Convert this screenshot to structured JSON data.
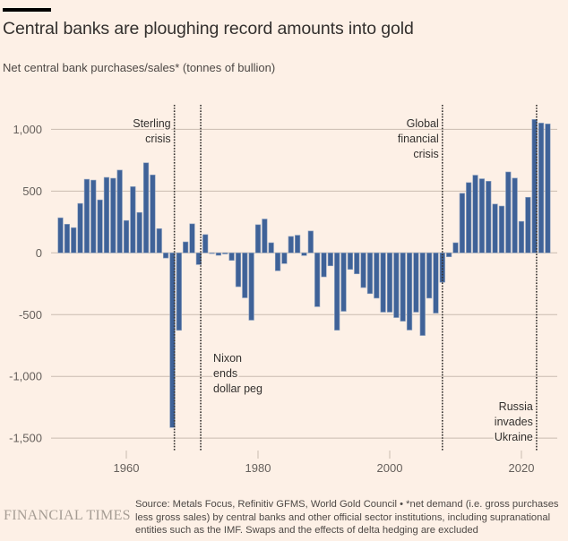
{
  "header": {
    "title": "Central banks are ploughing record amounts into gold",
    "subtitle": "Net central bank purchases/sales* (tonnes of bullion)"
  },
  "footer": {
    "logo": "FINANCIAL TIMES",
    "source": "Source: Metals Focus, Refinitiv GFMS, World Gold Council • *net demand (i.e. gross purchases less gross sales) by central banks and other official sector institutions, including supranational entities such as the IMF. Swaps and the effects of delta hedging are excluded"
  },
  "colors": {
    "background": "#fdf0e6",
    "bar": "#3f6298",
    "bar_outline": "#8fa3c1",
    "grid": "#c9bbb0",
    "annotation_line": "#33302e"
  },
  "chart_data": {
    "type": "bar",
    "title": "Central banks are ploughing record amounts into gold",
    "subtitle": "Net central bank purchases/sales* (tonnes of bullion)",
    "xlabel": "",
    "ylabel": "",
    "ylim": [
      -1500,
      1150
    ],
    "xlim": [
      1949,
      2025
    ],
    "grid": true,
    "legend": "none",
    "y_ticks": [
      {
        "value": 1000,
        "label": "1,000"
      },
      {
        "value": 500,
        "label": "500"
      },
      {
        "value": 0,
        "label": "0"
      },
      {
        "value": -500,
        "label": "-500"
      },
      {
        "value": -1000,
        "label": "-1,000"
      },
      {
        "value": -1500,
        "label": "-1,500"
      }
    ],
    "x_ticks": [
      {
        "value": 1960,
        "label": "1960"
      },
      {
        "value": 1980,
        "label": "1980"
      },
      {
        "value": 2000,
        "label": "2000"
      },
      {
        "value": 2020,
        "label": "2020"
      }
    ],
    "x": [
      1950,
      1951,
      1952,
      1953,
      1954,
      1955,
      1956,
      1957,
      1958,
      1959,
      1960,
      1961,
      1962,
      1963,
      1964,
      1965,
      1966,
      1967,
      1968,
      1969,
      1970,
      1971,
      1972,
      1973,
      1974,
      1975,
      1976,
      1977,
      1978,
      1979,
      1980,
      1981,
      1982,
      1983,
      1984,
      1985,
      1986,
      1987,
      1988,
      1989,
      1990,
      1991,
      1992,
      1993,
      1994,
      1995,
      1996,
      1997,
      1998,
      1999,
      2000,
      2001,
      2002,
      2003,
      2004,
      2005,
      2006,
      2007,
      2008,
      2009,
      2010,
      2011,
      2012,
      2013,
      2014,
      2015,
      2016,
      2017,
      2018,
      2019,
      2020,
      2021,
      2022,
      2023,
      2024
    ],
    "series": [
      {
        "name": "Net central bank purchases/sales (tonnes)",
        "values": [
          284,
          232,
          204,
          400,
          596,
          589,
          429,
          611,
          604,
          670,
          262,
          536,
          327,
          729,
          631,
          196,
          -42,
          -1414,
          -627,
          89,
          235,
          -95,
          148,
          -6,
          -20,
          -9,
          -61,
          -274,
          -364,
          -545,
          228,
          274,
          82,
          -145,
          -87,
          133,
          143,
          -22,
          177,
          -436,
          -194,
          -105,
          -626,
          -473,
          -134,
          -170,
          -281,
          -330,
          -367,
          -480,
          -480,
          -524,
          -553,
          -625,
          -480,
          -669,
          -367,
          -488,
          -238,
          -32,
          82,
          482,
          569,
          629,
          600,
          580,
          395,
          379,
          655,
          605,
          255,
          450,
          1080,
          1051,
          1044
        ]
      }
    ],
    "annotations": [
      {
        "year": 1967.3,
        "label_lines": [
          "Sterling",
          "crisis"
        ],
        "label_side": "left",
        "label_position": "top"
      },
      {
        "year": 1971.3,
        "label_lines": [
          "Nixon",
          "ends",
          "dollar peg"
        ],
        "label_side": "right",
        "label_position": "bottom"
      },
      {
        "year": 2008.0,
        "label_lines": [
          "Global",
          "financial",
          "crisis"
        ],
        "label_side": "left",
        "label_position": "top"
      },
      {
        "year": 2022.3,
        "label_lines": [
          "Russia",
          "invades",
          "Ukraine"
        ],
        "label_side": "left",
        "label_position": "bottom"
      }
    ]
  }
}
